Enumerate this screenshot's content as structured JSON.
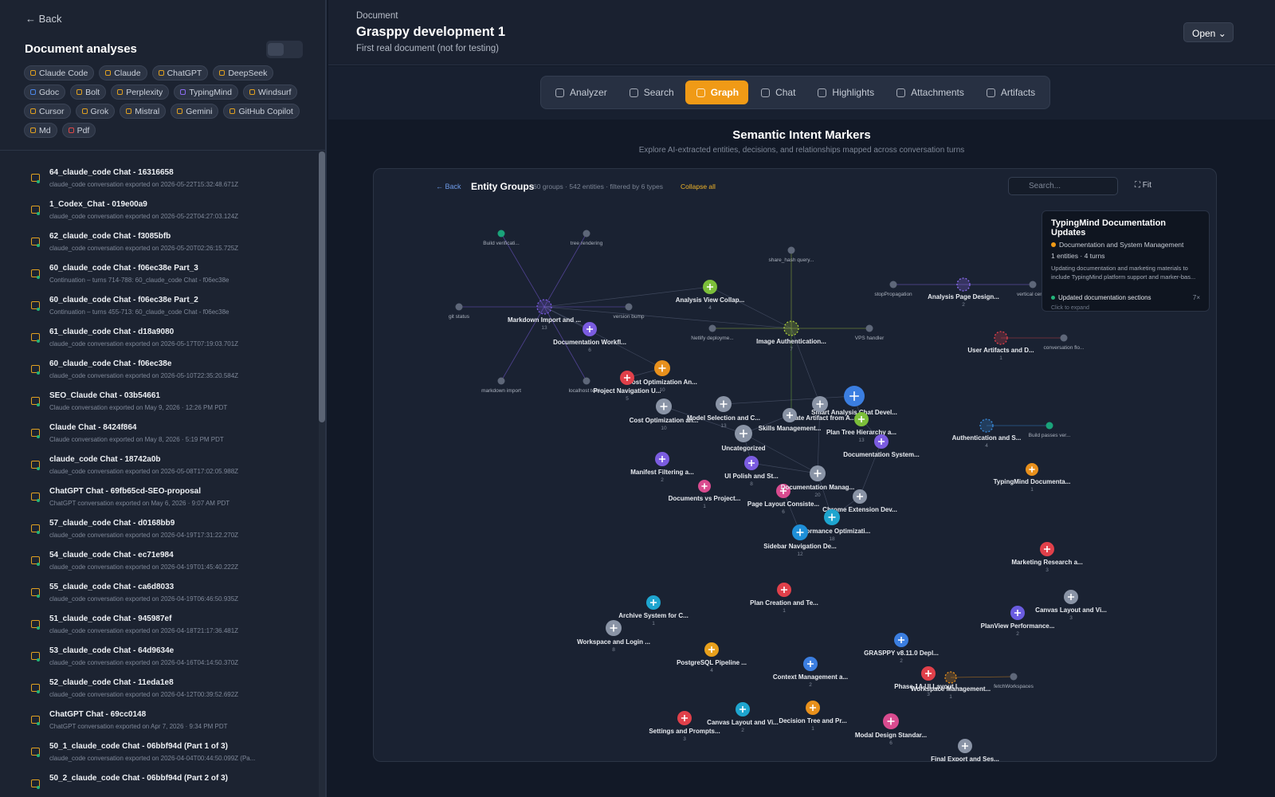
{
  "sidebar": {
    "back": "Back",
    "title": "Document analyses",
    "tags": [
      {
        "label": "Claude Code",
        "color": "#e0a020"
      },
      {
        "label": "Claude",
        "color": "#e0a020"
      },
      {
        "label": "ChatGPT",
        "color": "#e0a020"
      },
      {
        "label": "DeepSeek",
        "color": "#e0a020"
      },
      {
        "label": "Gdoc",
        "color": "#4b86e8"
      },
      {
        "label": "Bolt",
        "color": "#e0a020"
      },
      {
        "label": "Perplexity",
        "color": "#e0a020"
      },
      {
        "label": "TypingMind",
        "color": "#8b6cf0"
      },
      {
        "label": "Windsurf",
        "color": "#e0a020"
      },
      {
        "label": "Cursor",
        "color": "#e0a020"
      },
      {
        "label": "Grok",
        "color": "#e0a020"
      },
      {
        "label": "Mistral",
        "color": "#e0a020"
      },
      {
        "label": "Gemini",
        "color": "#e0a020"
      },
      {
        "label": "GitHub Copilot",
        "color": "#e0a020"
      },
      {
        "label": "Md",
        "color": "#e0a020"
      },
      {
        "label": "Pdf",
        "color": "#e04848"
      }
    ],
    "items": [
      {
        "title": "64_claude_code Chat - 16316658",
        "sub": "claude_code conversation exported on 2026-05-22T15:32:48.671Z"
      },
      {
        "title": "1_Codex_Chat - 019e00a9",
        "sub": "claude_code conversation exported on 2026-05-22T04:27:03.124Z"
      },
      {
        "title": "62_claude_code Chat - f3085bfb",
        "sub": "claude_code conversation exported on 2026-05-20T02:26:15.725Z"
      },
      {
        "title": "60_claude_code Chat - f06ec38e Part_3",
        "sub": "Continuation – turns 714-788: 60_claude_code Chat - f06ec38e"
      },
      {
        "title": "60_claude_code Chat - f06ec38e Part_2",
        "sub": "Continuation – turns 455-713: 60_claude_code Chat - f06ec38e"
      },
      {
        "title": "61_claude_code Chat - d18a9080",
        "sub": "claude_code conversation exported on 2026-05-17T07:19:03.701Z"
      },
      {
        "title": "60_claude_code Chat - f06ec38e",
        "sub": "claude_code conversation exported on 2026-05-10T22:35:20.584Z"
      },
      {
        "title": "SEO_Claude Chat - 03b54661",
        "sub": "Claude conversation exported on May 9, 2026 · 12:26 PM PDT"
      },
      {
        "title": "Claude Chat - 8424f864",
        "sub": "Claude conversation exported on May 8, 2026 · 5:19 PM PDT"
      },
      {
        "title": "claude_code Chat - 18742a0b",
        "sub": "claude_code conversation exported on 2026-05-08T17:02:05.988Z"
      },
      {
        "title": "ChatGPT Chat - 69fb65cd-SEO-proposal",
        "sub": "ChatGPT conversation exported on May 6, 2026 · 9:07 AM PDT"
      },
      {
        "title": "57_claude_code Chat - d0168bb9",
        "sub": "claude_code conversation exported on 2026-04-19T17:31:22.270Z"
      },
      {
        "title": "54_claude_code Chat - ec71e984",
        "sub": "claude_code conversation exported on 2026-04-19T01:45:40.222Z"
      },
      {
        "title": "55_claude_code Chat - ca6d8033",
        "sub": "claude_code conversation exported on 2026-04-19T06:46:50.935Z"
      },
      {
        "title": "51_claude_code Chat - 945987ef",
        "sub": "claude_code conversation exported on 2026-04-18T21:17:36.481Z"
      },
      {
        "title": "53_claude_code Chat - 64d9634e",
        "sub": "claude_code conversation exported on 2026-04-16T04:14:50.370Z"
      },
      {
        "title": "52_claude_code Chat - 11eda1e8",
        "sub": "claude_code conversation exported on 2026-04-12T00:39:52.692Z"
      },
      {
        "title": "ChatGPT Chat - 69cc0148",
        "sub": "ChatGPT conversation exported on Apr 7, 2026 · 9:34 PM PDT"
      },
      {
        "title": "50_1_claude_code Chat - 06bbf94d (Part 1 of 3)",
        "sub": "claude_code conversation exported on 2026-04-04T00:44:50.099Z (Pa..."
      },
      {
        "title": "50_2_claude_code Chat - 06bbf94d (Part 2 of 3)",
        "sub": ""
      }
    ]
  },
  "header": {
    "label": "Document",
    "title": "Grasppy development 1",
    "subtitle": "First real document (not for testing)",
    "open": "Open"
  },
  "tabs": {
    "items": [
      "Analyzer",
      "Search",
      "Graph",
      "Chat",
      "Highlights",
      "Attachments",
      "Artifacts"
    ],
    "active": 2
  },
  "graph": {
    "title": "Semantic Intent Markers",
    "subtitle": "Explore AI-extracted entities, decisions, and relationships mapped across conversation turns",
    "back": "Back",
    "heading": "Entity Groups",
    "meta": "60 groups · 542 entities · filtered by 6 types",
    "collapse": "Collapse all",
    "search": "Search...",
    "fit": "Fit",
    "groups": [
      {
        "label": "Markdown Import and ...",
        "count": 13,
        "color": "#7b5ce0",
        "expanded": true
      },
      {
        "label": "Documentation Workfl...",
        "count": 6,
        "color": "#7b5ce0"
      },
      {
        "label": "Analysis View Collap...",
        "count": 4,
        "color": "#7cbf3a"
      },
      {
        "label": "Image Authentication...",
        "count": 7,
        "color": "#a8c83a",
        "expanded": true
      },
      {
        "label": "Cost Optimization An...",
        "count": 10,
        "color": "#e8901c"
      },
      {
        "label": "Project Navigation U...",
        "count": 5,
        "color": "#e0404a"
      },
      {
        "label": "Cost Optimization an...",
        "count": 10,
        "color": "#8a94a6"
      },
      {
        "label": "Model Selection and C...",
        "count": 13,
        "color": "#8a94a6"
      },
      {
        "label": "Smart Analysis Chat Devel...",
        "color": "#3b7ee0"
      },
      {
        "label": "Create Artifact from A...",
        "color": "#8a94a6"
      },
      {
        "label": "Plan Tree Hierarchy a...",
        "count": 13,
        "color": "#7cbf3a"
      },
      {
        "label": "Skills Management...",
        "color": "#8a94a6"
      },
      {
        "label": "Uncategorized",
        "color": "#8a94a6"
      },
      {
        "label": "Documentation System...",
        "color": "#7b5ce0"
      },
      {
        "label": "Manifest Filtering a...",
        "count": 2,
        "color": "#7b5ce0"
      },
      {
        "label": "Documents vs Project...",
        "count": 1,
        "color": "#d94b8f"
      },
      {
        "label": "UI Polish and St...",
        "count": 8,
        "color": "#7b5ce0"
      },
      {
        "label": "Page Layout Consiste...",
        "count": 6,
        "color": "#d94b8f"
      },
      {
        "label": "Documentation Manag...",
        "count": 20,
        "color": "#8a94a6"
      },
      {
        "label": "Chrome Extension Dev...",
        "color": "#8a94a6"
      },
      {
        "label": "Performance Optimizati...",
        "count": 18,
        "color": "#1ea5cf"
      },
      {
        "label": "Sidebar Navigation De...",
        "count": 12,
        "color": "#1e8fd8"
      },
      {
        "label": "Analysis Page Design...",
        "count": 2,
        "color": "#8b6cf0",
        "expanded": true
      },
      {
        "label": "User Artifacts and D...",
        "count": 1,
        "color": "#e0404a",
        "expanded": true
      },
      {
        "label": "Authentication and S...",
        "count": 4,
        "color": "#3b8ee0",
        "expanded": true
      },
      {
        "label": "TypingMind Documenta...",
        "count": 1,
        "color": "#e8901c"
      },
      {
        "label": "Marketing Research a...",
        "count": 3,
        "color": "#e0404a"
      },
      {
        "label": "Canvas Layout and Vi...",
        "count": 3,
        "color": "#8a94a6"
      },
      {
        "label": "PlanView Performance...",
        "count": 2,
        "color": "#6a5ce0"
      },
      {
        "label": "GRASPPY v8.11.0 Depl...",
        "count": 2,
        "color": "#3b7ee0"
      },
      {
        "label": "Phase 1A UI Layout I...",
        "count": 3,
        "color": "#e0404a"
      },
      {
        "label": "Workspace Management...",
        "count": 1,
        "color": "#e8901c",
        "expanded": true
      },
      {
        "label": "Plan Creation and Te...",
        "count": 1,
        "color": "#e0404a"
      },
      {
        "label": "Archive System for C...",
        "count": 1,
        "color": "#1ea5cf"
      },
      {
        "label": "Workspace and Login ...",
        "count": 8,
        "color": "#8a94a6"
      },
      {
        "label": "PostgreSQL Pipeline ...",
        "count": 4,
        "color": "#e8a01c"
      },
      {
        "label": "Context Management a...",
        "count": 2,
        "color": "#3b7ee0"
      },
      {
        "label": "Decision Tree and Pr...",
        "count": 1,
        "color": "#e8901c"
      },
      {
        "label": "Canvas Layout and Vi...",
        "count": 2,
        "color": "#1ea5cf"
      },
      {
        "label": "Settings and Prompts...",
        "count": 3,
        "color": "#e0404a"
      },
      {
        "label": "Modal Design Standar...",
        "count": 6,
        "color": "#d94b8f"
      },
      {
        "label": "Final Export and Ses...",
        "color": "#8a94a6"
      }
    ],
    "entities": [
      {
        "label": "Build verificati...",
        "color": "#1aa37a"
      },
      {
        "label": "tree rendering",
        "color": "#5e6779"
      },
      {
        "label": "git status",
        "color": "#5e6779"
      },
      {
        "label": "version bump",
        "color": "#5e6779"
      },
      {
        "label": "markdown import",
        "color": "#5e6779"
      },
      {
        "label": "localhost testi...",
        "color": "#5e6779"
      },
      {
        "label": "share_hash query...",
        "color": "#5e6779"
      },
      {
        "label": "Netlify deployme...",
        "color": "#5e6779"
      },
      {
        "label": "VPS handler",
        "color": "#5e6779"
      },
      {
        "label": "stopPropagation",
        "color": "#5e6779"
      },
      {
        "label": "vertical cent...",
        "color": "#5e6779"
      },
      {
        "label": "conversation flo...",
        "color": "#5e6779"
      },
      {
        "label": "Build passes ver...",
        "color": "#1aa37a"
      },
      {
        "label": "fetchWorkspaces",
        "color": "#5e6779"
      }
    ],
    "tooltip": {
      "title": "TypingMind Documentation Updates",
      "category": "Documentation and System Management",
      "stats": "1 entities · 4 turns",
      "description": "Updating documentation and marketing materials to include TypingMind platform support and marker-bas...",
      "item": "Updated documentation sections",
      "item_count": "7×",
      "hint": "Click to expand"
    }
  }
}
